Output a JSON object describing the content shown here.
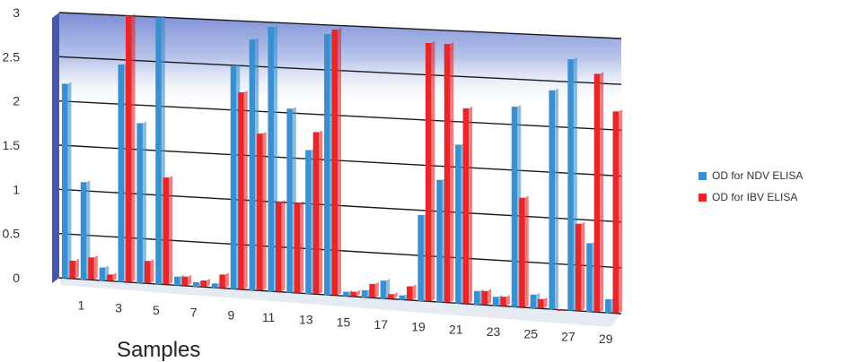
{
  "chart_data": {
    "type": "bar",
    "xlabel": "Samples",
    "ylabel": "",
    "ylim": [
      0,
      3
    ],
    "yticks": [
      "0",
      "0.5",
      "1",
      "1.5",
      "2",
      "2.5",
      "3"
    ],
    "grid": true,
    "legend_position": "right",
    "categories": [
      "1",
      "2",
      "3",
      "4",
      "5",
      "6",
      "7",
      "8",
      "9",
      "10",
      "11",
      "12",
      "13",
      "14",
      "15",
      "16",
      "17",
      "18",
      "19",
      "20",
      "21",
      "22",
      "23",
      "24",
      "25",
      "26",
      "27",
      "28",
      "29",
      "30"
    ],
    "tick_labels": [
      "1",
      "3",
      "5",
      "7",
      "9",
      "11",
      "13",
      "15",
      "17",
      "19",
      "21",
      "23",
      "25",
      "27",
      "29"
    ],
    "series": [
      {
        "name": "OD for NDV ELISA",
        "color": "#3a8fd1",
        "values": [
          2.2,
          1.1,
          0.15,
          2.45,
          1.8,
          3.0,
          0.1,
          0.05,
          0.05,
          2.5,
          2.8,
          2.95,
          2.05,
          1.6,
          2.9,
          0.05,
          0.08,
          0.2,
          0.05,
          0.95,
          1.35,
          1.75,
          0.15,
          0.1,
          2.2,
          0.15,
          2.4,
          2.75,
          0.75,
          0.15
        ]
      },
      {
        "name": "OD for IBV ELISA",
        "color": "#e8262a",
        "values": [
          0.2,
          0.25,
          0.07,
          3.0,
          0.25,
          1.2,
          0.1,
          0.07,
          0.15,
          2.2,
          1.75,
          1.0,
          1.0,
          1.8,
          2.95,
          0.05,
          0.15,
          0.05,
          0.15,
          2.85,
          2.85,
          2.15,
          0.15,
          0.1,
          1.2,
          0.1,
          0.0,
          0.95,
          2.6,
          2.2
        ]
      }
    ]
  },
  "legend": {
    "items": [
      {
        "label": "OD for NDV ELISA",
        "color": "#3a8fd1"
      },
      {
        "label": "OD for IBV ELISA",
        "color": "#e8262a"
      }
    ]
  }
}
